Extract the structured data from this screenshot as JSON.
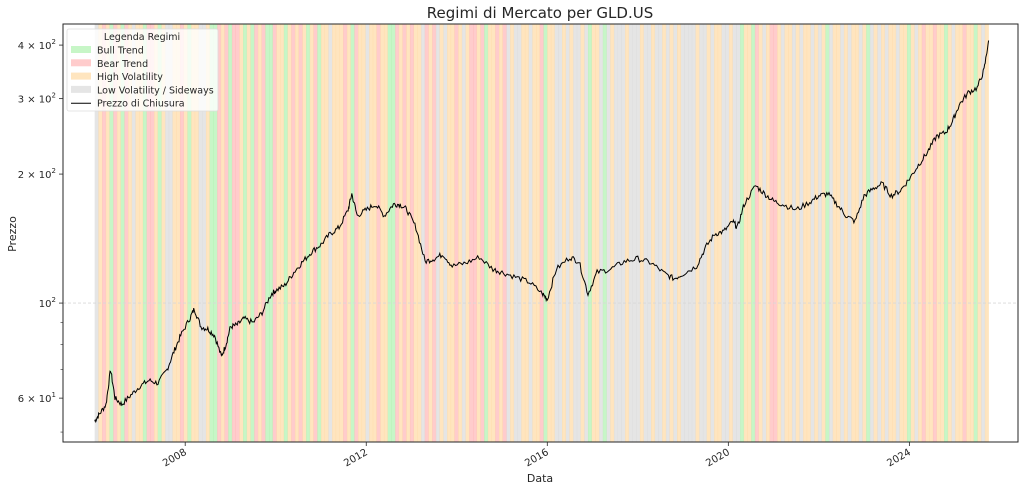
{
  "chart_data": {
    "type": "line",
    "title": "Regimi di Mercato per GLD.US",
    "xlabel": "Data",
    "ylabel": "Prezzo",
    "yscale": "log",
    "ylim": [
      47.4,
      448
    ],
    "xlim": [
      2005.3,
      2026.4
    ],
    "x_ticks": [
      {
        "value": 2008,
        "label": "2008"
      },
      {
        "value": 2012,
        "label": "2012"
      },
      {
        "value": 2016,
        "label": "2016"
      },
      {
        "value": 2020,
        "label": "2020"
      },
      {
        "value": 2024,
        "label": "2024"
      }
    ],
    "y_ticks": [
      {
        "value": 60,
        "label_base": "6 × 10",
        "label_exp": "1"
      },
      {
        "value": 100,
        "label_base": "10",
        "label_exp": "2"
      },
      {
        "value": 200,
        "label_base": "2 × 10",
        "label_exp": "2"
      },
      {
        "value": 300,
        "label_base": "3 × 10",
        "label_exp": "2"
      },
      {
        "value": 400,
        "label_base": "4 × 10",
        "label_exp": "2"
      }
    ],
    "grid": "horizontal dashed line at 10^2",
    "legend": {
      "title": "Legenda Regimi",
      "position": "upper left",
      "entries": [
        {
          "label": "Bull Trend",
          "type": "patch",
          "color": "#90ee90"
        },
        {
          "label": "Bear Trend",
          "type": "patch",
          "color": "#ff9999"
        },
        {
          "label": "High Volatility",
          "type": "patch",
          "color": "#ffcc80"
        },
        {
          "label": "Low Volatility / Sideways",
          "type": "patch",
          "color": "#cccccc"
        },
        {
          "label": "Prezzo di Chiusura",
          "type": "line",
          "color": "#000000"
        }
      ]
    },
    "regime_colors": {
      "B": "#90ee90",
      "R": "#ff9999",
      "H": "#ffcc80",
      "L": "#cccccc"
    },
    "regime_band_start": 2006.0,
    "regime_band_end": 2025.75,
    "regime_sequence": "LHRHBRHBRHLHHBRRHBHLLHHRHBHHLLHBBRHRBRRHBHBRHRBBRHHBHRHRHBHRBHHLHHHRHBRHHLHHRHHBBRHRHRHHLRHRLHLHHRHLHRRHRBHHRHRLHLLHHLHHRBHHLLHLHLLHLBHHLBLHLLLHLLLHLLHLLHLHLHLLLLHLLHLHHLLHLLBHHBRHLHRRHLHHLHLHHLHLHBLHHLHLHHLHBLHLHLHHLHHBHLHRHHRHHBHLHHRHHBHLH",
    "series": [
      {
        "name": "Prezzo di Chiusura",
        "x": [
          2006.0,
          2006.1,
          2006.25,
          2006.35,
          2006.45,
          2006.6,
          2006.8,
          2007.0,
          2007.2,
          2007.4,
          2007.6,
          2007.75,
          2007.9,
          2008.1,
          2008.2,
          2008.35,
          2008.5,
          2008.65,
          2008.8,
          2008.9,
          2009.0,
          2009.15,
          2009.3,
          2009.5,
          2009.7,
          2009.9,
          2010.0,
          2010.2,
          2010.4,
          2010.6,
          2010.8,
          2011.0,
          2011.2,
          2011.4,
          2011.6,
          2011.68,
          2011.8,
          2012.0,
          2012.2,
          2012.4,
          2012.6,
          2012.75,
          2012.9,
          2013.1,
          2013.3,
          2013.5,
          2013.7,
          2013.9,
          2014.2,
          2014.5,
          2014.8,
          2015.0,
          2015.3,
          2015.6,
          2015.9,
          2016.0,
          2016.2,
          2016.5,
          2016.7,
          2016.9,
          2017.1,
          2017.4,
          2017.7,
          2018.0,
          2018.3,
          2018.6,
          2018.8,
          2019.0,
          2019.3,
          2019.5,
          2019.7,
          2019.9,
          2020.1,
          2020.2,
          2020.35,
          2020.6,
          2020.8,
          2021.0,
          2021.2,
          2021.5,
          2021.8,
          2022.0,
          2022.2,
          2022.4,
          2022.6,
          2022.8,
          2023.0,
          2023.2,
          2023.4,
          2023.6,
          2023.8,
          2024.0,
          2024.2,
          2024.4,
          2024.6,
          2024.8,
          2024.95,
          2025.1,
          2025.3,
          2025.5,
          2025.65,
          2025.75
        ],
        "y": [
          53,
          55,
          58,
          70,
          60,
          58,
          61,
          64,
          66,
          65,
          70,
          77,
          84,
          92,
          97,
          88,
          87,
          84,
          75,
          80,
          88,
          89,
          92,
          90,
          95,
          105,
          107,
          110,
          118,
          125,
          132,
          137,
          145,
          150,
          165,
          180,
          160,
          165,
          170,
          160,
          170,
          170,
          165,
          150,
          125,
          127,
          130,
          122,
          124,
          128,
          120,
          118,
          115,
          112,
          105,
          102,
          120,
          128,
          125,
          105,
          118,
          120,
          125,
          127,
          124,
          117,
          114,
          117,
          122,
          135,
          145,
          147,
          155,
          150,
          170,
          188,
          180,
          173,
          170,
          165,
          172,
          178,
          180,
          170,
          160,
          155,
          178,
          185,
          190,
          178,
          183,
          195,
          210,
          225,
          245,
          250,
          265,
          290,
          310,
          318,
          350,
          410
        ]
      }
    ]
  }
}
